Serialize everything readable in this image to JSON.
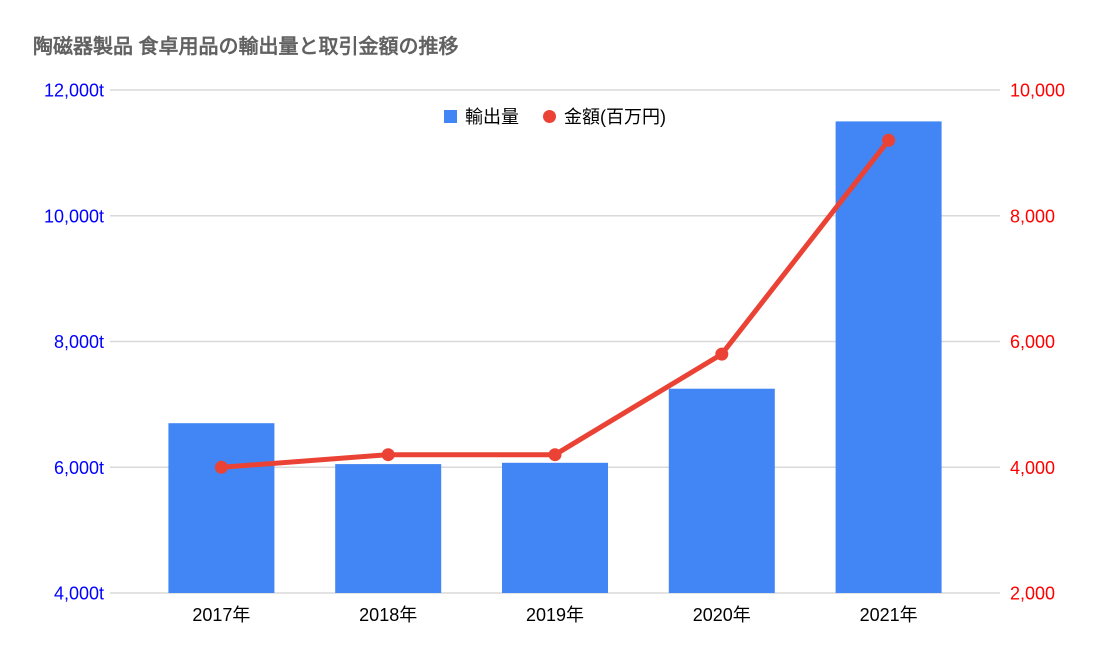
{
  "title": "陶磁器製品 食卓用品の輸出量と取引金額の推移",
  "title_color": "#616161",
  "legend": {
    "items": [
      {
        "label": "輸出量",
        "shape": "square",
        "color": "#4285F4"
      },
      {
        "label": "金額(百万円)",
        "shape": "circle",
        "color": "#EA4335"
      }
    ]
  },
  "chart_data": {
    "type": "combo",
    "title": "陶磁器製品 食卓用品の輸出量と取引金額の推移",
    "categories": [
      "2017年",
      "2018年",
      "2019年",
      "2020年",
      "2021年"
    ],
    "series": [
      {
        "name": "輸出量",
        "type": "bar",
        "axis": "left",
        "color": "#4285F4",
        "values": [
          6700,
          6050,
          6070,
          7250,
          11500
        ]
      },
      {
        "name": "金額(百万円)",
        "type": "line",
        "axis": "right",
        "color": "#EA4335",
        "values": [
          4000,
          4200,
          4200,
          5800,
          9200
        ]
      }
    ],
    "left_axis": {
      "unit": "t",
      "min": 4000,
      "max": 12000,
      "ticks": [
        4000,
        6000,
        8000,
        10000,
        12000
      ],
      "tick_labels": [
        "4,000t",
        "6,000t",
        "8,000t",
        "10,000t",
        "12,000t"
      ],
      "color": "#0000FF"
    },
    "right_axis": {
      "unit": "百万円",
      "min": 2000,
      "max": 10000,
      "ticks": [
        2000,
        4000,
        6000,
        8000,
        10000
      ],
      "tick_labels": [
        "2,000",
        "4,000",
        "6,000",
        "8,000",
        "10,000"
      ],
      "color": "#FF0000"
    },
    "x_axis_color": "#000000",
    "grid": true,
    "gridline_color": "#D9D9D9",
    "legend_position": "top",
    "background": "#FFFFFF"
  }
}
